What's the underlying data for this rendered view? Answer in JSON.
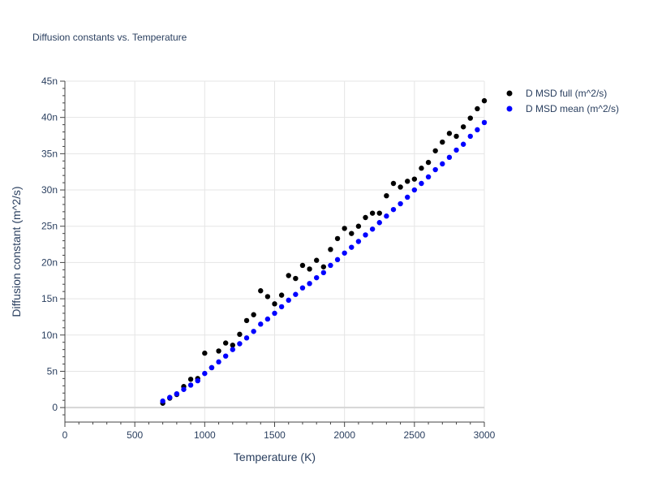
{
  "chart_data": {
    "type": "scatter",
    "title": "Diffusion constants vs. Temperature",
    "xlabel": "Temperature (K)",
    "ylabel": "Diffusion constant (m^2/s)",
    "xlim": [
      0,
      3000
    ],
    "ylim": [
      -2e-09,
      4.5e-08
    ],
    "grid": true,
    "legend_position": "top-right",
    "x_ticks": [
      0,
      500,
      1000,
      1500,
      2000,
      2500,
      3000
    ],
    "x_tick_labels": [
      "0",
      "500",
      "1000",
      "1500",
      "2000",
      "2500",
      "3000"
    ],
    "y_ticks": [
      0,
      5e-09,
      1e-08,
      1.5e-08,
      2e-08,
      2.5e-08,
      3e-08,
      3.5e-08,
      4e-08,
      4.5e-08
    ],
    "y_tick_labels": [
      "0",
      "5n",
      "10n",
      "15n",
      "20n",
      "25n",
      "30n",
      "35n",
      "40n",
      "45n"
    ],
    "x": [
      700,
      750,
      800,
      850,
      900,
      950,
      1000,
      1050,
      1100,
      1150,
      1200,
      1250,
      1300,
      1350,
      1400,
      1450,
      1500,
      1550,
      1600,
      1650,
      1700,
      1750,
      1800,
      1850,
      1900,
      1950,
      2000,
      2050,
      2100,
      2150,
      2200,
      2250,
      2300,
      2350,
      2400,
      2450,
      2500,
      2550,
      2600,
      2650,
      2700,
      2750,
      2800,
      2850,
      2900,
      2950,
      3000
    ],
    "series": [
      {
        "name": "D MSD full (m^2/s)",
        "color": "#000000",
        "values": [
          6e-10,
          1.3e-09,
          1.8e-09,
          2.9e-09,
          3.9e-09,
          4e-09,
          7.5e-09,
          5.5e-09,
          7.8e-09,
          8.9e-09,
          8.6e-09,
          1.01e-08,
          1.2e-08,
          1.28e-08,
          1.61e-08,
          1.53e-08,
          1.43e-08,
          1.55e-08,
          1.82e-08,
          1.78e-08,
          1.96e-08,
          1.91e-08,
          2.03e-08,
          1.94e-08,
          2.18e-08,
          2.33e-08,
          2.47e-08,
          2.4e-08,
          2.5e-08,
          2.62e-08,
          2.68e-08,
          2.68e-08,
          2.92e-08,
          3.09e-08,
          3.04e-08,
          3.12e-08,
          3.15e-08,
          3.3e-08,
          3.38e-08,
          3.54e-08,
          3.66e-08,
          3.78e-08,
          3.74e-08,
          3.87e-08,
          3.99e-08,
          4.12e-08,
          4.23e-08
        ]
      },
      {
        "name": "D MSD mean (m^2/s)",
        "color": "#0000ff",
        "values": [
          9e-10,
          1.4e-09,
          1.9e-09,
          2.5e-09,
          3.1e-09,
          3.7e-09,
          4.7e-09,
          5.5e-09,
          6.3e-09,
          7.1e-09,
          8e-09,
          8.8e-09,
          9.6e-09,
          1.05e-08,
          1.15e-08,
          1.22e-08,
          1.3e-08,
          1.39e-08,
          1.48e-08,
          1.56e-08,
          1.65e-08,
          1.71e-08,
          1.79e-08,
          1.86e-08,
          1.96e-08,
          2.04e-08,
          2.13e-08,
          2.21e-08,
          2.29e-08,
          2.38e-08,
          2.46e-08,
          2.55e-08,
          2.64e-08,
          2.73e-08,
          2.81e-08,
          2.9e-08,
          3e-08,
          3.09e-08,
          3.18e-08,
          3.28e-08,
          3.36e-08,
          3.45e-08,
          3.55e-08,
          3.63e-08,
          3.74e-08,
          3.83e-08,
          3.93e-08
        ]
      }
    ]
  }
}
